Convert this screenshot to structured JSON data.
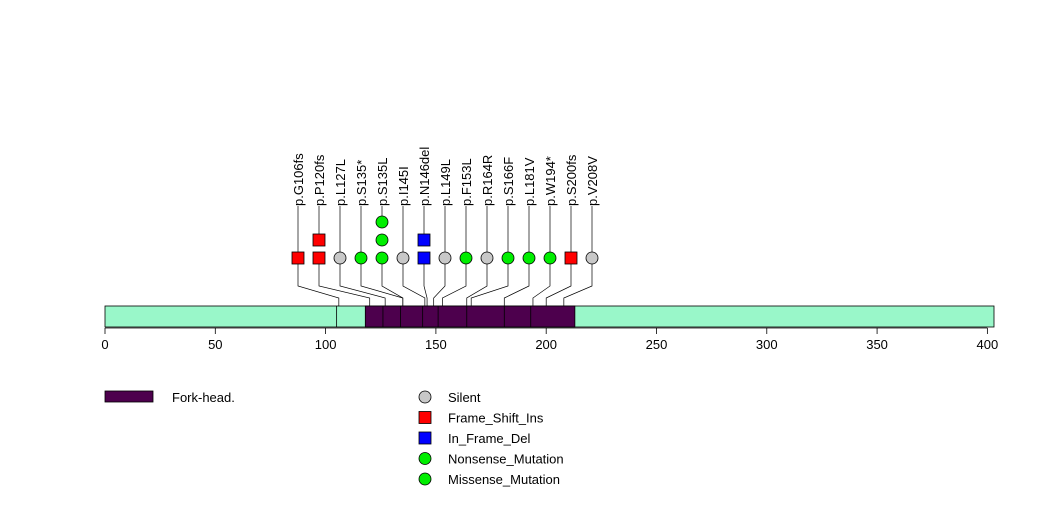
{
  "chart_data": {
    "type": "lollipop",
    "title": "",
    "protein_length": 403,
    "xlim": [
      0,
      403
    ],
    "ticks": [
      0,
      50,
      100,
      150,
      200,
      250,
      300,
      350,
      400
    ],
    "backbone_color": "#99f7c9",
    "domains": [
      {
        "name": "Fork-head.",
        "start": 118,
        "end": 213,
        "color": "#4d004d"
      }
    ],
    "exon_boundaries": [
      105,
      126,
      134,
      144,
      151,
      164,
      181,
      193
    ],
    "mutations": [
      {
        "label": "p.G106fs",
        "position": 106,
        "markers": [
          "Frame_Shift_Ins"
        ]
      },
      {
        "label": "p.P120fs",
        "position": 120,
        "markers": [
          "Frame_Shift_Ins",
          "Frame_Shift_Ins"
        ]
      },
      {
        "label": "p.L127L",
        "position": 127,
        "markers": [
          "Silent"
        ]
      },
      {
        "label": "p.S135*",
        "position": 135,
        "markers": [
          "Nonsense_Mutation"
        ]
      },
      {
        "label": "p.S135L",
        "position": 135,
        "markers": [
          "Missense_Mutation",
          "Missense_Mutation",
          "Missense_Mutation"
        ]
      },
      {
        "label": "p.I145I",
        "position": 145,
        "markers": [
          "Silent"
        ]
      },
      {
        "label": "p.N146del",
        "position": 146,
        "markers": [
          "In_Frame_Del",
          "In_Frame_Del"
        ]
      },
      {
        "label": "p.L149L",
        "position": 149,
        "markers": [
          "Silent"
        ]
      },
      {
        "label": "p.F153L",
        "position": 153,
        "markers": [
          "Missense_Mutation"
        ]
      },
      {
        "label": "p.R164R",
        "position": 164,
        "markers": [
          "Silent"
        ]
      },
      {
        "label": "p.S166F",
        "position": 166,
        "markers": [
          "Missense_Mutation"
        ]
      },
      {
        "label": "p.L181V",
        "position": 181,
        "markers": [
          "Missense_Mutation"
        ]
      },
      {
        "label": "p.W194*",
        "position": 194,
        "markers": [
          "Nonsense_Mutation"
        ]
      },
      {
        "label": "p.S200fs",
        "position": 200,
        "markers": [
          "Frame_Shift_Ins"
        ]
      },
      {
        "label": "p.V208V",
        "position": 208,
        "markers": [
          "Silent"
        ]
      }
    ],
    "mutation_types": [
      {
        "name": "Silent",
        "shape": "circle",
        "color": "#c8c8c8"
      },
      {
        "name": "Frame_Shift_Ins",
        "shape": "square",
        "color": "#ff0000"
      },
      {
        "name": "In_Frame_Del",
        "shape": "square",
        "color": "#0000ff"
      },
      {
        "name": "Nonsense_Mutation",
        "shape": "circle",
        "color": "#00ee00"
      },
      {
        "name": "Missense_Mutation",
        "shape": "circle",
        "color": "#00ee00"
      }
    ],
    "legend": {
      "domain_label": "Fork-head.",
      "type_labels": [
        "Silent",
        "Frame_Shift_Ins",
        "In_Frame_Del",
        "Nonsense_Mutation",
        "Missense_Mutation"
      ]
    }
  }
}
